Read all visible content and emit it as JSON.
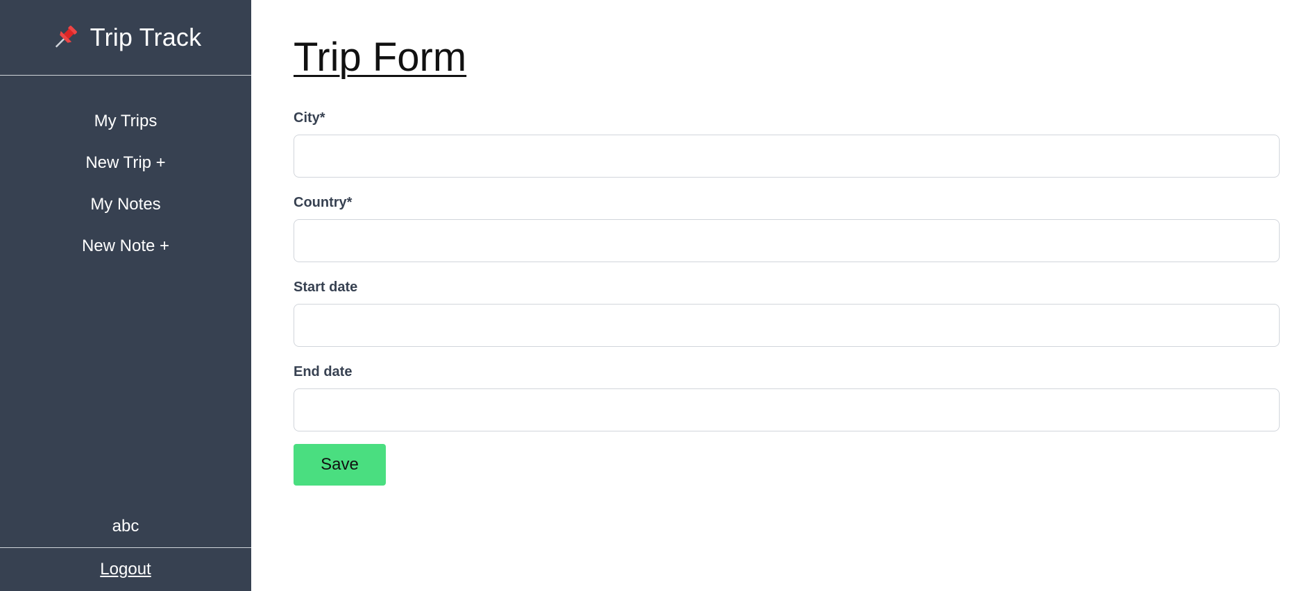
{
  "brand": {
    "icon": "pushpin-icon",
    "title": "Trip Track",
    "accent": "#ef4444"
  },
  "sidebar": {
    "background": "#374151",
    "items": [
      {
        "label": "My Trips"
      },
      {
        "label": "New Trip +"
      },
      {
        "label": "My Notes"
      },
      {
        "label": "New Note +"
      }
    ],
    "username": "abc",
    "logout_label": "Logout"
  },
  "main": {
    "title": "Trip Form",
    "fields": [
      {
        "label": "City*",
        "value": "",
        "placeholder": ""
      },
      {
        "label": "Country*",
        "value": "",
        "placeholder": ""
      },
      {
        "label": "Start date",
        "value": "",
        "placeholder": ""
      },
      {
        "label": "End date",
        "value": "",
        "placeholder": ""
      }
    ],
    "save_label": "Save",
    "save_color": "#4ade80"
  }
}
